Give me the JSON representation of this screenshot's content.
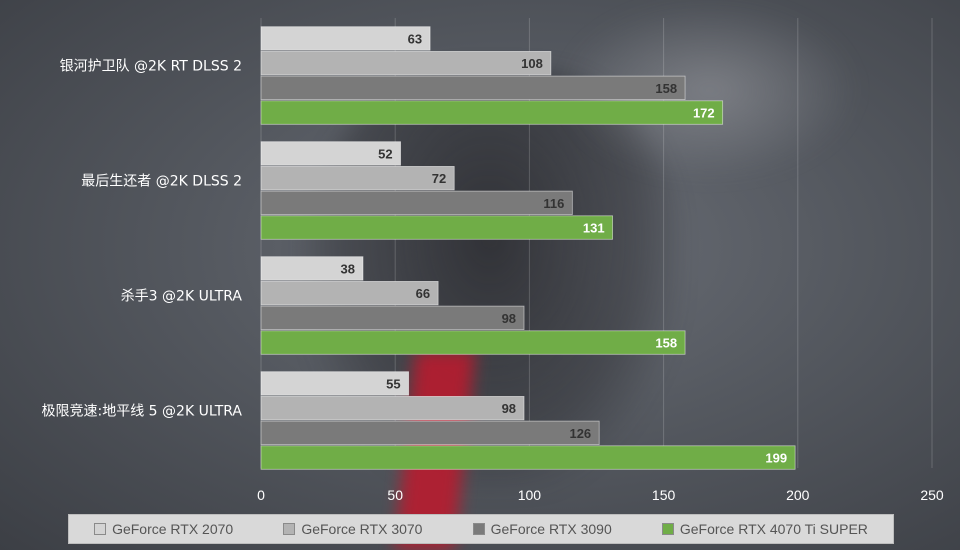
{
  "chart_data": {
    "type": "bar",
    "orientation": "horizontal",
    "categories": [
      "银河护卫队 @2K RT DLSS 2",
      "最后生还者 @2K DLSS 2",
      "杀手3 @2K ULTRA",
      "极限竞速:地平线 5 @2K ULTRA"
    ],
    "series": [
      {
        "name": "GeForce RTX 2070",
        "values": [
          63,
          52,
          38,
          55
        ],
        "color": "#d4d4d4"
      },
      {
        "name": "GeForce RTX 3070",
        "values": [
          108,
          72,
          66,
          98
        ],
        "color": "#b3b3b3"
      },
      {
        "name": "GeForce RTX 3090",
        "values": [
          158,
          116,
          98,
          126
        ],
        "color": "#7a7a7a"
      },
      {
        "name": "GeForce RTX 4070 Ti SUPER",
        "values": [
          172,
          131,
          158,
          199
        ],
        "color": "#70ad47"
      }
    ],
    "xlim": [
      0,
      250
    ],
    "xticks": [
      0,
      50,
      100,
      150,
      200,
      250
    ],
    "grid": true,
    "legend_position": "bottom"
  }
}
